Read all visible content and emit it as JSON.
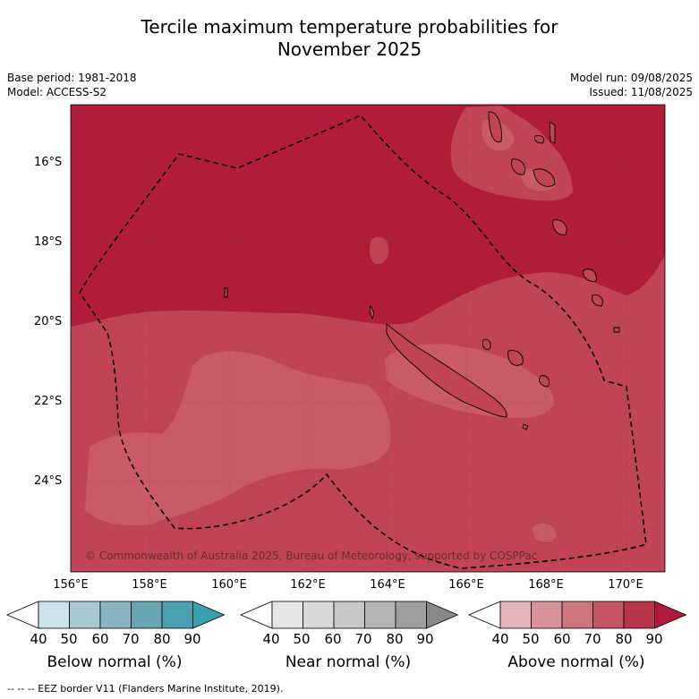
{
  "title_line1": "Tercile maximum temperature probabilities for",
  "title_line2": "November 2025",
  "base_period": "Base period: 1981-2018",
  "model": "Model: ACCESS-S2",
  "model_run": "Model run: 09/08/2025",
  "issued": "Issued: 11/08/2025",
  "copyright": "© Commonwealth of Australia 2025, Bureau of Meteorology, supported by COSPPac",
  "footnote": "--  --  -- EEZ border V11 (Flanders Marine Institute, 2019).",
  "lat_labels": [
    "16°S",
    "18°S",
    "20°S",
    "22°S",
    "24°S"
  ],
  "lon_labels": [
    "156°E",
    "158°E",
    "160°E",
    "162°E",
    "164°E",
    "166°E",
    "168°E",
    "170°E"
  ],
  "colorbars": [
    {
      "title": "Below normal (%)",
      "ticks": [
        "40",
        "50",
        "60",
        "70",
        "80",
        "90"
      ],
      "colors": [
        "#ffffff",
        "#cde3e8",
        "#a8c9cf",
        "#88b5bf",
        "#67a5b2",
        "#4aa0b0",
        "#3c9fae"
      ]
    },
    {
      "title": "Near normal (%)",
      "ticks": [
        "40",
        "50",
        "60",
        "70",
        "80",
        "90"
      ],
      "colors": [
        "#ffffff",
        "#e6e6e6",
        "#d9d9d9",
        "#c8c8c8",
        "#b5b5b5",
        "#9f9f9f",
        "#888888"
      ]
    },
    {
      "title": "Above normal (%)",
      "ticks": [
        "40",
        "50",
        "60",
        "70",
        "80",
        "90"
      ],
      "colors": [
        "#ffffff",
        "#e2b5bd",
        "#d7939c",
        "#cc7680",
        "#c45565",
        "#b9354c",
        "#ad1a3d"
      ]
    }
  ],
  "probability_classes": [
    {
      "range": "80-90",
      "color": "#b21c3b"
    },
    {
      "range": "70-80",
      "color": "#c04455"
    },
    {
      "range": "60-70",
      "color": "#c95a68"
    }
  ]
}
